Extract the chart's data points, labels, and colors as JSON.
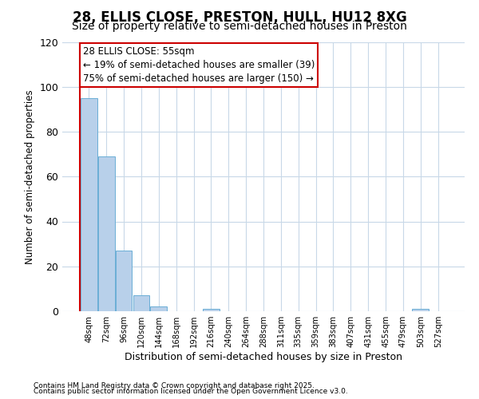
{
  "title": "28, ELLIS CLOSE, PRESTON, HULL, HU12 8XG",
  "subtitle": "Size of property relative to semi-detached houses in Preston",
  "xlabel": "Distribution of semi-detached houses by size in Preston",
  "ylabel": "Number of semi-detached properties",
  "footnote1": "Contains HM Land Registry data © Crown copyright and database right 2025.",
  "footnote2": "Contains public sector information licensed under the Open Government Licence v3.0.",
  "categories": [
    "48sqm",
    "72sqm",
    "96sqm",
    "120sqm",
    "144sqm",
    "168sqm",
    "192sqm",
    "216sqm",
    "240sqm",
    "264sqm",
    "288sqm",
    "311sqm",
    "335sqm",
    "359sqm",
    "383sqm",
    "407sqm",
    "431sqm",
    "455sqm",
    "479sqm",
    "503sqm",
    "527sqm"
  ],
  "values": [
    95,
    69,
    27,
    7,
    2,
    0,
    0,
    1,
    0,
    0,
    0,
    0,
    0,
    0,
    0,
    0,
    0,
    0,
    0,
    1,
    0
  ],
  "bar_color": "#b8d0ea",
  "bar_edge_color": "#6aaed6",
  "annotation_line1": "28 ELLIS CLOSE: 55sqm",
  "annotation_line2": "← 19% of semi-detached houses are smaller (39)",
  "annotation_line3": "75% of semi-detached houses are larger (150) →",
  "annotation_box_color": "#cc0000",
  "annotation_fill": "#ffffff",
  "red_line_bar_index": 0,
  "ylim": [
    0,
    120
  ],
  "yticks": [
    0,
    20,
    40,
    60,
    80,
    100,
    120
  ],
  "background_color": "#ffffff",
  "plot_bg_color": "#ffffff",
  "grid_color": "#c8d8e8",
  "title_fontsize": 12,
  "subtitle_fontsize": 10,
  "annot_fontsize": 8.5
}
